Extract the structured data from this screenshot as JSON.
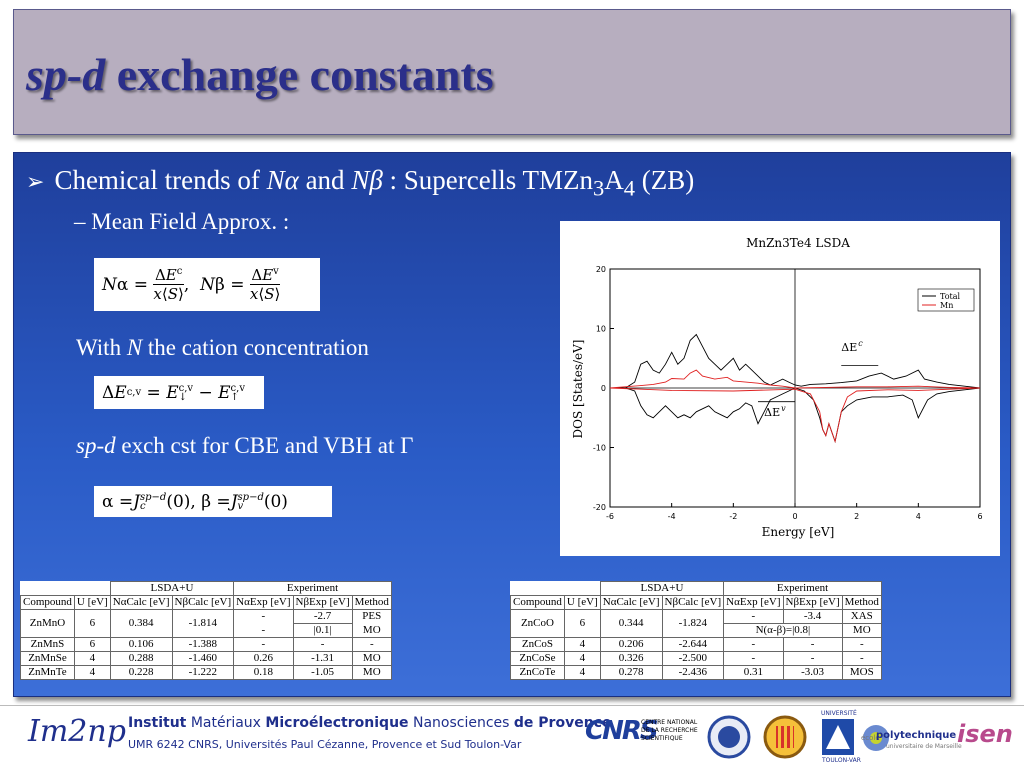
{
  "title": {
    "italic": "sp-d",
    "rest": "exchange constants"
  },
  "bullet1": {
    "pre": "Chemical trends of ",
    "na": "Nα",
    "and": " and ",
    "nb": "Nβ",
    "post": " : Supercells TMZn",
    "sub1": "3",
    "a": "A",
    "sub2": "4",
    "end": " (ZB)"
  },
  "bullet2": "– Mean Field Approx. :",
  "with_line": {
    "pre": "With ",
    "n": "N",
    "post": " the cation concentration"
  },
  "exch_line": {
    "italic": "sp-d",
    "rest": " exch cst for CBE and VBH at Γ"
  },
  "chart_data": {
    "type": "line",
    "title": "MnZn3Te4 LSDA",
    "xlabel": "Energy [eV]",
    "ylabel": "DOS [States/eV]",
    "xlim": [
      -6,
      6
    ],
    "ylim": [
      -20,
      20
    ],
    "xticks": [
      "-6",
      "-4",
      "-2",
      "0",
      "2",
      "4",
      "6"
    ],
    "yticks": [
      "20",
      "10",
      "0",
      "-10",
      "-20"
    ],
    "legend": [
      "Total",
      "Mn"
    ],
    "legend_position": "top-right",
    "annotations": [
      "ΔE",
      "ΔE"
    ],
    "annotation_sup": [
      "c",
      "v"
    ],
    "series": [
      {
        "name": "Total",
        "color": "#000000",
        "x": [
          -6,
          -5.5,
          -5.2,
          -5.0,
          -4.8,
          -4.6,
          -4.4,
          -4.2,
          -4.0,
          -3.8,
          -3.6,
          -3.4,
          -3.2,
          -3.0,
          -2.8,
          -2.6,
          -2.4,
          -2.2,
          -2.0,
          -1.8,
          -1.6,
          -1.4,
          -1.2,
          -1.0,
          -0.8,
          -0.6,
          -0.4,
          -0.2,
          0,
          0.2,
          0.5,
          1.0,
          1.5,
          2.0,
          2.4,
          2.8,
          3.2,
          3.6,
          4.0,
          4.2,
          4.6,
          5.0,
          5.5,
          6.0
        ],
        "y": [
          0,
          0,
          1,
          4,
          4.5,
          3,
          2.5,
          4,
          6,
          4,
          5,
          8,
          9,
          7,
          5,
          4,
          3,
          4,
          5,
          3,
          4,
          3,
          2,
          1,
          0.5,
          1,
          1.5,
          1,
          0.5,
          0.3,
          0.6,
          0.7,
          0.9,
          1.2,
          2,
          2.5,
          1.5,
          2,
          3,
          1.5,
          1,
          0.6,
          0.3,
          0
        ]
      },
      {
        "name": "Total",
        "color": "#000000",
        "x": [
          -6,
          -5.5,
          -5.2,
          -5.0,
          -4.8,
          -4.6,
          -4.4,
          -4.2,
          -4.0,
          -3.8,
          -3.6,
          -3.4,
          -3.2,
          -3.0,
          -2.8,
          -2.6,
          -2.4,
          -2.2,
          -2.0,
          -1.8,
          -1.6,
          -1.4,
          -1.2,
          -1.0,
          -0.8,
          -0.6,
          -0.4,
          -0.2,
          0,
          0.3,
          0.6,
          0.8,
          0.9,
          1.0,
          1.1,
          1.3,
          1.5,
          1.7,
          2.0,
          2.5,
          3.0,
          3.5,
          3.8,
          4.0,
          4.3,
          4.6,
          5.0,
          5.5,
          6.0
        ],
        "y": [
          0,
          0,
          -0.5,
          -3,
          -4.5,
          -5,
          -4,
          -3,
          -4,
          -5,
          -4.5,
          -5,
          -4,
          -3.5,
          -3,
          -4,
          -4.5,
          -5,
          -4,
          -3.5,
          -2.5,
          -3,
          -6,
          -4,
          -2,
          -1.5,
          -1,
          -0.5,
          0,
          -0.5,
          -2,
          -5,
          -7,
          -8,
          -6,
          -9,
          -4,
          -3,
          -2,
          -1.5,
          -1.5,
          -1.2,
          -2,
          -5,
          -2,
          -1,
          -0.6,
          -0.3,
          0
        ]
      },
      {
        "name": "Mn",
        "color": "#e02020",
        "x": [
          -6,
          -5.0,
          -4.6,
          -4.2,
          -4.0,
          -3.6,
          -3.4,
          -3.2,
          -3.0,
          -2.6,
          -2.2,
          -2.0,
          -1.6,
          -1.2,
          -0.8,
          -0.4,
          0,
          1.0,
          2.0,
          3.0,
          4.0,
          5.0,
          6.0
        ],
        "y": [
          0,
          0.4,
          0.6,
          1,
          1.6,
          1.5,
          2.5,
          3,
          2,
          1.5,
          1.8,
          1.2,
          1,
          0.8,
          0.5,
          0.3,
          0,
          0.1,
          0.2,
          0.2,
          0.3,
          0.1,
          0
        ]
      },
      {
        "name": "Mn",
        "color": "#e02020",
        "x": [
          -6,
          -4,
          -2,
          0,
          0.5,
          0.8,
          0.9,
          1.0,
          1.1,
          1.3,
          1.5,
          1.7,
          2.0,
          3.0,
          4.0,
          6.0
        ],
        "y": [
          0,
          -0.4,
          -0.5,
          -0.2,
          -1,
          -4,
          -7,
          -8,
          -6,
          -9,
          -4,
          -1.5,
          -0.5,
          -0.3,
          -0.4,
          0
        ]
      }
    ]
  },
  "table_left": {
    "group_lsda": "LSDA+U",
    "group_exp": "Experiment",
    "headers": [
      "Compound",
      "U [eV]",
      "NαCalc [eV]",
      "NβCalc [eV]",
      "NαExp [eV]",
      "NβExp [eV]",
      "Method"
    ],
    "rows": [
      {
        "compound": "ZnMnO",
        "u": "6",
        "na": "0.384",
        "nb": "-1.814",
        "nae1": "-",
        "nae2": "-",
        "nbe1": "-2.7",
        "nbe2": "|0.1|",
        "m1": "PES",
        "m2": "MO"
      },
      {
        "compound": "ZnMnS",
        "u": "6",
        "na": "0.106",
        "nb": "-1.388",
        "nae": "-",
        "nbe": "-",
        "m": "-"
      },
      {
        "compound": "ZnMnSe",
        "u": "4",
        "na": "0.288",
        "nb": "-1.460",
        "nae": "0.26",
        "nbe": "-1.31",
        "m": "MO"
      },
      {
        "compound": "ZnMnTe",
        "u": "4",
        "na": "0.228",
        "nb": "-1.222",
        "nae": "0.18",
        "nbe": "-1.05",
        "m": "MO"
      }
    ]
  },
  "table_right": {
    "group_lsda": "LSDA+U",
    "group_exp": "Experiment",
    "headers": [
      "Compound",
      "U [eV]",
      "NαCalc [eV]",
      "NβCalc [eV]",
      "NαExp [eV]",
      "NβExp [eV]",
      "Method"
    ],
    "rows": [
      {
        "compound": "ZnCoO",
        "u": "6",
        "na": "0.344",
        "nb": "-1.824",
        "nae1": "-",
        "nbe1": "-3.4",
        "m1": "XAS",
        "merged": "N(α-β)=|0.8|",
        "m2": "MO"
      },
      {
        "compound": "ZnCoS",
        "u": "4",
        "na": "0.206",
        "nb": "-2.644",
        "nae": "-",
        "nbe": "-",
        "m": "-"
      },
      {
        "compound": "ZnCoSe",
        "u": "4",
        "na": "0.326",
        "nb": "-2.500",
        "nae": "-",
        "nbe": "-",
        "m": "-"
      },
      {
        "compound": "ZnCoTe",
        "u": "4",
        "na": "0.278",
        "nb": "-2.436",
        "nae": "0.31",
        "nbe": "-3.03",
        "m": "MOS"
      }
    ]
  },
  "footer": {
    "logo": "Im2np",
    "institut": "Institut",
    "materiaux": "Matériaux",
    "micro": "Microélectronique",
    "nano": "Nanosciences",
    "de_prov": "de Provence",
    "umr": "UMR 6242 CNRS, Universités Paul Cézanne, Provence et Sud Toulon-Var",
    "cnrs": "CNRS",
    "cnrs_lines": [
      "CENTRE NATIONAL",
      "DE LA RECHERCHE",
      "SCIENTIFIQUE"
    ],
    "universite": "UNIVERSITÉ",
    "toulon": "TOULON-VAR",
    "ecole": "école",
    "polytech": "polytechnique",
    "polytech_sub": "universitaire de Marseille",
    "isen": "isen"
  }
}
